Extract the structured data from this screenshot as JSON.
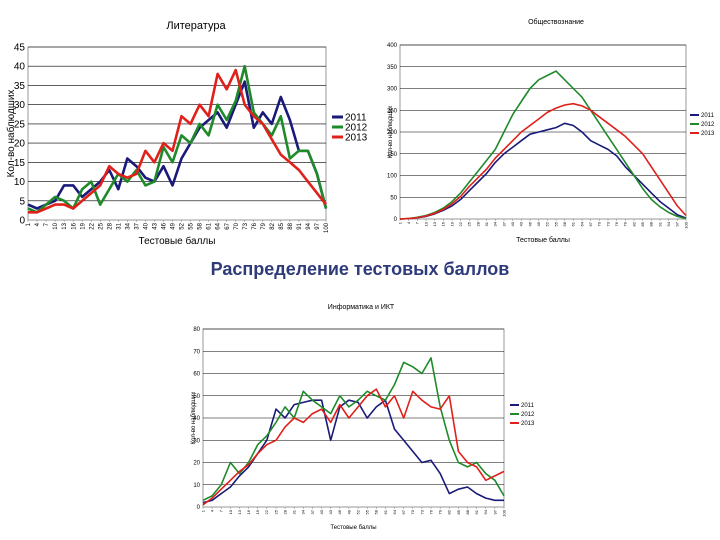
{
  "page_title": "Распределение тестовых баллов",
  "chart_data": [
    {
      "type": "line",
      "title": "Литература",
      "xlabel": "Тестовые баллы",
      "ylabel": "Кол-во наблюдших",
      "ylim": [
        0,
        45
      ],
      "yticks": [
        0,
        5,
        10,
        15,
        20,
        25,
        30,
        35,
        40,
        45
      ],
      "x": [
        1,
        4,
        7,
        10,
        13,
        16,
        19,
        22,
        25,
        28,
        31,
        34,
        37,
        40,
        43,
        46,
        49,
        52,
        55,
        58,
        61,
        64,
        67,
        70,
        73,
        76,
        79,
        82,
        85,
        88,
        91,
        94,
        97,
        100
      ],
      "x_tick_labels": [
        "1",
        "4",
        "7",
        "10",
        "13",
        "16",
        "19",
        "22",
        "25",
        "28",
        "31",
        "34",
        "37",
        "40",
        "43",
        "46",
        "49",
        "52",
        "55",
        "58",
        "61",
        "64",
        "67",
        "70",
        "73",
        "76",
        "79",
        "82",
        "85",
        "88",
        "91",
        "94",
        "97",
        "100"
      ],
      "grid": true,
      "legend_position": "right",
      "series": [
        {
          "name": "2011",
          "color": "#1a1a7a",
          "values": [
            4,
            3,
            4,
            5,
            9,
            9,
            6,
            8,
            10,
            13,
            8,
            16,
            14,
            11,
            10,
            14,
            9,
            16,
            20,
            24,
            26,
            28,
            24,
            30,
            36,
            24,
            28,
            25,
            32,
            26,
            18,
            18,
            12,
            3
          ]
        },
        {
          "name": "2012",
          "color": "#1f8a2a",
          "values": [
            3,
            2,
            4,
            6,
            5,
            3,
            8,
            10,
            4,
            8,
            12,
            10,
            13,
            9,
            10,
            19,
            15,
            22,
            20,
            25,
            22,
            30,
            26,
            31,
            40,
            28,
            25,
            22,
            27,
            16,
            18,
            18,
            12,
            3
          ]
        },
        {
          "name": "2013",
          "color": "#e0201a",
          "values": [
            2,
            2,
            3,
            4,
            4,
            3,
            5,
            7,
            9,
            14,
            12,
            11,
            12,
            18,
            15,
            20,
            18,
            27,
            25,
            30,
            27,
            38,
            34,
            39,
            30,
            27,
            25,
            21,
            17,
            15,
            13,
            10,
            7,
            4
          ]
        }
      ]
    },
    {
      "type": "line",
      "title": "Обществознание",
      "xlabel": "Тестовые баллы",
      "ylabel": "Кол-во наблюдших",
      "ylim": [
        0,
        400
      ],
      "yticks": [
        0,
        50,
        100,
        150,
        200,
        250,
        300,
        350,
        400
      ],
      "x": [
        1,
        4,
        7,
        10,
        13,
        16,
        19,
        22,
        25,
        28,
        31,
        34,
        37,
        40,
        43,
        46,
        49,
        52,
        55,
        58,
        61,
        64,
        67,
        70,
        73,
        76,
        79,
        82,
        85,
        88,
        91,
        94,
        97,
        100
      ],
      "x_tick_labels": [
        "1",
        "4",
        "7",
        "10",
        "13",
        "16",
        "19",
        "22",
        "25",
        "28",
        "31",
        "34",
        "37",
        "40",
        "43",
        "46",
        "49",
        "52",
        "55",
        "58",
        "61",
        "64",
        "67",
        "70",
        "73",
        "76",
        "79",
        "82",
        "85",
        "88",
        "91",
        "94",
        "97",
        "100"
      ],
      "grid": true,
      "legend_position": "right",
      "series": [
        {
          "name": "2011",
          "color": "#1a1a7a",
          "values": [
            0,
            1,
            3,
            6,
            12,
            20,
            30,
            45,
            65,
            85,
            105,
            130,
            150,
            165,
            180,
            195,
            200,
            205,
            210,
            220,
            215,
            200,
            180,
            170,
            160,
            145,
            120,
            100,
            80,
            60,
            40,
            25,
            10,
            2
          ]
        },
        {
          "name": "2012",
          "color": "#1f8a2a",
          "values": [
            0,
            1,
            4,
            8,
            15,
            25,
            40,
            60,
            85,
            110,
            135,
            160,
            200,
            240,
            270,
            300,
            320,
            330,
            340,
            320,
            300,
            280,
            250,
            220,
            190,
            160,
            130,
            100,
            70,
            45,
            28,
            15,
            6,
            1
          ]
        },
        {
          "name": "2013",
          "color": "#e0201a",
          "values": [
            0,
            1,
            3,
            7,
            13,
            22,
            35,
            52,
            75,
            95,
            115,
            140,
            160,
            180,
            200,
            215,
            230,
            245,
            255,
            262,
            265,
            260,
            250,
            235,
            220,
            205,
            190,
            170,
            150,
            120,
            90,
            60,
            30,
            8
          ]
        }
      ]
    },
    {
      "type": "line",
      "title": "Информатика и ИКТ",
      "xlabel": "Тестовые баллы",
      "ylabel": "Кол-во наблюдших",
      "ylim": [
        0,
        80
      ],
      "yticks": [
        0,
        10,
        20,
        30,
        40,
        50,
        60,
        70,
        80
      ],
      "x": [
        1,
        4,
        7,
        10,
        13,
        16,
        19,
        22,
        25,
        28,
        31,
        34,
        37,
        40,
        43,
        46,
        49,
        52,
        55,
        58,
        61,
        64,
        67,
        70,
        73,
        76,
        79,
        82,
        85,
        88,
        91,
        94,
        97,
        100
      ],
      "x_tick_labels": [
        "1",
        "4",
        "7",
        "10",
        "13",
        "16",
        "19",
        "22",
        "25",
        "28",
        "31",
        "34",
        "37",
        "40",
        "43",
        "46",
        "49",
        "52",
        "55",
        "58",
        "61",
        "64",
        "67",
        "70",
        "73",
        "76",
        "79",
        "82",
        "85",
        "88",
        "91",
        "94",
        "97",
        "100"
      ],
      "grid": true,
      "legend_position": "right",
      "series": [
        {
          "name": "2011",
          "color": "#1a1a7a",
          "values": [
            2,
            3,
            6,
            9,
            14,
            18,
            24,
            30,
            44,
            40,
            46,
            47,
            48,
            48,
            30,
            45,
            48,
            47,
            40,
            45,
            48,
            35,
            30,
            25,
            20,
            21,
            15,
            6,
            8,
            9,
            6,
            4,
            3,
            3
          ]
        },
        {
          "name": "2012",
          "color": "#1f8a2a",
          "values": [
            3,
            5,
            10,
            20,
            15,
            20,
            28,
            32,
            38,
            45,
            40,
            52,
            48,
            45,
            42,
            50,
            45,
            48,
            52,
            50,
            48,
            55,
            65,
            63,
            60,
            67,
            45,
            30,
            20,
            18,
            20,
            15,
            12,
            5
          ]
        },
        {
          "name": "2013",
          "color": "#e0201a",
          "values": [
            1,
            4,
            8,
            12,
            16,
            19,
            24,
            28,
            30,
            36,
            40,
            38,
            42,
            44,
            38,
            46,
            40,
            45,
            50,
            53,
            45,
            50,
            40,
            52,
            48,
            45,
            44,
            50,
            25,
            20,
            18,
            12,
            14,
            16
          ]
        }
      ]
    }
  ]
}
